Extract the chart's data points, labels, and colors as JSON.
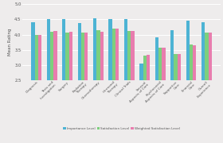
{
  "categories": [
    "Diagnosis",
    "Tests and\nInvestigation",
    "Surgery",
    "Radiation\nTherapy",
    "Chemotherapy",
    "Hormonal\nTherapy",
    "Clinical Trials",
    "Sensual\nAspects of Care",
    "Psychosocial\nAspects of Care",
    "Supportive\nCare",
    "Financial\nCare",
    "Overall\nExperience"
  ],
  "importance": [
    4.4,
    4.5,
    4.5,
    4.38,
    4.55,
    4.5,
    4.5,
    3.05,
    3.9,
    4.15,
    4.45,
    4.4
  ],
  "satisfaction": [
    3.98,
    4.1,
    4.08,
    4.07,
    4.15,
    4.2,
    4.13,
    3.32,
    3.57,
    3.35,
    3.67,
    4.07
  ],
  "weighted_satisfaction": [
    3.98,
    4.12,
    4.1,
    4.08,
    4.1,
    4.2,
    4.13,
    3.33,
    3.57,
    3.35,
    3.66,
    4.08
  ],
  "bar_colors": [
    "#4db3d4",
    "#7dcf7d",
    "#e87dae"
  ],
  "ylabel": "Mean Rating",
  "ylim": [
    2.5,
    5.0
  ],
  "yticks": [
    2.5,
    3.0,
    3.5,
    4.0,
    4.5,
    5.0
  ],
  "legend_labels": [
    "Importance Level",
    "Satisfaction Level",
    "Weighted Satisfaction Level"
  ],
  "background_color": "#eeecec",
  "plot_bg_color": "#eeecec",
  "grid_color": "#ffffff"
}
